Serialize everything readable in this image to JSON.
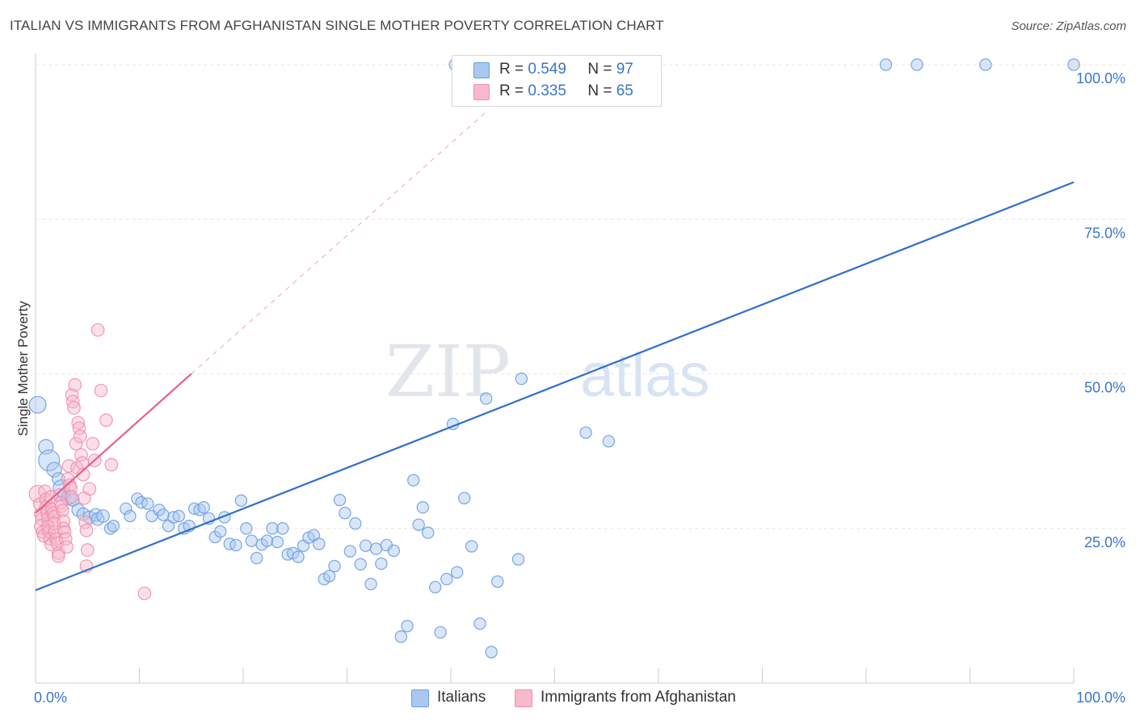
{
  "title": "ITALIAN VS IMMIGRANTS FROM AFGHANISTAN SINGLE MOTHER POVERTY CORRELATION CHART",
  "source": "Source: ZipAtlas.com",
  "watermark": {
    "zip": "ZIP",
    "atlas": "atlas"
  },
  "legend": {
    "r_label": "R =",
    "n_label": "N =",
    "series": [
      {
        "r": "0.549",
        "n": "97"
      },
      {
        "r": "0.335",
        "n": "65"
      }
    ]
  },
  "chart_data": {
    "type": "scatter",
    "title": "ITALIAN VS IMMIGRANTS FROM AFGHANISTAN SINGLE MOTHER POVERTY CORRELATION CHART",
    "xlabel": "",
    "ylabel": "Single Mother Poverty",
    "xlim": [
      0,
      100
    ],
    "ylim": [
      0,
      100
    ],
    "x_tick_labels": [
      "0.0%",
      "100.0%"
    ],
    "y_tick_labels": [
      "25.0%",
      "50.0%",
      "75.0%",
      "100.0%"
    ],
    "y_ticks": [
      25,
      50,
      75,
      100
    ],
    "grid": true,
    "legend_position": "top-center",
    "colors": {
      "italians_fill": "#a9c8f0",
      "italians_stroke": "#6d9de0",
      "italians_line": "#2f6fcc",
      "afghan_fill": "#f7b9cb",
      "afghan_stroke": "#ee8fac",
      "afghan_line": "#e8628a",
      "tick_label": "#3a76c8"
    },
    "series": [
      {
        "name": "Italians",
        "r": 0.549,
        "n": 97,
        "trend": {
          "x": [
            0,
            100
          ],
          "y": [
            15.0,
            81.0
          ]
        },
        "points": [
          [
            0.2,
            45.0,
            16
          ],
          [
            1.0,
            38.2,
            14
          ],
          [
            1.3,
            36.0,
            20
          ],
          [
            1.8,
            34.5,
            14
          ],
          [
            2.2,
            33.0,
            12
          ],
          [
            2.5,
            31.5,
            16
          ],
          [
            2.8,
            30.5,
            12
          ],
          [
            3.2,
            30.0,
            14
          ],
          [
            3.6,
            29.6,
            12
          ],
          [
            4.1,
            28.0,
            12
          ],
          [
            4.6,
            27.3,
            12
          ],
          [
            5.2,
            26.8,
            12
          ],
          [
            5.8,
            27.2,
            12
          ],
          [
            6.0,
            26.5,
            12
          ],
          [
            6.5,
            27.0,
            12
          ],
          [
            7.2,
            25.0,
            11
          ],
          [
            7.5,
            25.4,
            11
          ],
          [
            8.7,
            28.2,
            11
          ],
          [
            9.1,
            27.0,
            11
          ],
          [
            9.8,
            29.8,
            11
          ],
          [
            10.2,
            29.2,
            11
          ],
          [
            10.8,
            29.0,
            11
          ],
          [
            11.2,
            27.0,
            11
          ],
          [
            11.9,
            28.0,
            11
          ],
          [
            12.3,
            27.2,
            11
          ],
          [
            12.8,
            25.4,
            11
          ],
          [
            13.3,
            26.8,
            11
          ],
          [
            13.8,
            27.0,
            11
          ],
          [
            14.3,
            25.0,
            11
          ],
          [
            14.8,
            25.4,
            11
          ],
          [
            15.3,
            28.2,
            11
          ],
          [
            15.8,
            28.0,
            11
          ],
          [
            16.2,
            28.4,
            11
          ],
          [
            16.7,
            26.6,
            11
          ],
          [
            17.3,
            23.6,
            11
          ],
          [
            17.8,
            24.5,
            11
          ],
          [
            18.2,
            26.8,
            11
          ],
          [
            18.7,
            22.5,
            11
          ],
          [
            19.3,
            22.3,
            11
          ],
          [
            19.8,
            29.5,
            11
          ],
          [
            20.3,
            25.0,
            11
          ],
          [
            20.8,
            23.0,
            11
          ],
          [
            21.3,
            20.2,
            11
          ],
          [
            21.8,
            22.4,
            11
          ],
          [
            22.3,
            23.0,
            11
          ],
          [
            22.8,
            25.0,
            11
          ],
          [
            23.3,
            22.8,
            11
          ],
          [
            23.8,
            25.0,
            11
          ],
          [
            24.3,
            20.8,
            11
          ],
          [
            24.8,
            21.0,
            11
          ],
          [
            25.3,
            20.4,
            11
          ],
          [
            25.8,
            22.2,
            11
          ],
          [
            26.3,
            23.5,
            11
          ],
          [
            26.8,
            23.9,
            11
          ],
          [
            27.3,
            22.5,
            11
          ],
          [
            27.8,
            16.8,
            11
          ],
          [
            28.3,
            17.3,
            11
          ],
          [
            28.8,
            18.9,
            11
          ],
          [
            29.3,
            29.6,
            11
          ],
          [
            29.8,
            27.5,
            11
          ],
          [
            30.3,
            21.3,
            11
          ],
          [
            30.8,
            25.8,
            11
          ],
          [
            31.3,
            19.2,
            11
          ],
          [
            31.8,
            22.2,
            11
          ],
          [
            32.3,
            16.0,
            11
          ],
          [
            32.8,
            21.7,
            11
          ],
          [
            33.3,
            19.3,
            11
          ],
          [
            33.8,
            22.3,
            11
          ],
          [
            34.5,
            21.4,
            11
          ],
          [
            35.2,
            7.5,
            11
          ],
          [
            35.8,
            9.2,
            11
          ],
          [
            36.4,
            32.8,
            11
          ],
          [
            36.9,
            25.6,
            11
          ],
          [
            37.3,
            28.4,
            11
          ],
          [
            37.8,
            24.3,
            11
          ],
          [
            38.5,
            15.5,
            11
          ],
          [
            39.0,
            8.2,
            11
          ],
          [
            39.6,
            16.8,
            11
          ],
          [
            40.2,
            41.9,
            11
          ],
          [
            40.6,
            17.9,
            11
          ],
          [
            41.3,
            29.9,
            11
          ],
          [
            42.0,
            22.1,
            11
          ],
          [
            42.8,
            9.6,
            11
          ],
          [
            43.4,
            46.0,
            11
          ],
          [
            43.9,
            5.0,
            11
          ],
          [
            44.5,
            16.4,
            11
          ],
          [
            46.5,
            20.0,
            11
          ],
          [
            46.8,
            49.2,
            11
          ],
          [
            53.0,
            40.5,
            11
          ],
          [
            55.2,
            39.1,
            11
          ],
          [
            40.4,
            100,
            11
          ],
          [
            42.2,
            100,
            11
          ],
          [
            49.2,
            100,
            11
          ],
          [
            81.9,
            100,
            11
          ],
          [
            84.9,
            100,
            11
          ],
          [
            91.5,
            100,
            11
          ],
          [
            100,
            100,
            11
          ]
        ]
      },
      {
        "name": "Immigrants from Afghanistan",
        "r": 0.335,
        "n": 65,
        "trend": {
          "x": [
            0,
            15.0
          ],
          "y": [
            27.5,
            50.0
          ]
        },
        "trend_dashed": {
          "x": [
            15.0,
            43.5
          ],
          "y": [
            50.0,
            92.5
          ]
        },
        "points": [
          [
            0.2,
            30.6,
            16
          ],
          [
            0.4,
            28.9,
            12
          ],
          [
            0.5,
            27.3,
            12
          ],
          [
            0.6,
            26.5,
            12
          ],
          [
            0.6,
            25.3,
            14
          ],
          [
            0.7,
            24.4,
            12
          ],
          [
            0.8,
            23.8,
            12
          ],
          [
            0.9,
            31.0,
            12
          ],
          [
            1.0,
            29.7,
            12
          ],
          [
            1.0,
            28.4,
            12
          ],
          [
            1.1,
            27.6,
            12
          ],
          [
            1.2,
            26.6,
            12
          ],
          [
            1.2,
            25.3,
            12
          ],
          [
            1.3,
            24.5,
            12
          ],
          [
            1.4,
            23.3,
            12
          ],
          [
            1.5,
            22.4,
            12
          ],
          [
            1.5,
            30.1,
            12
          ],
          [
            1.6,
            28.0,
            12
          ],
          [
            1.7,
            27.5,
            12
          ],
          [
            1.8,
            26.9,
            12
          ],
          [
            1.8,
            25.8,
            12
          ],
          [
            1.9,
            24.5,
            12
          ],
          [
            2.0,
            23.3,
            12
          ],
          [
            2.1,
            22.6,
            12
          ],
          [
            2.2,
            21.0,
            12
          ],
          [
            2.2,
            20.5,
            12
          ],
          [
            2.3,
            30.4,
            12
          ],
          [
            2.4,
            29.1,
            12
          ],
          [
            2.5,
            28.6,
            12
          ],
          [
            2.6,
            27.9,
            12
          ],
          [
            2.7,
            26.2,
            12
          ],
          [
            2.7,
            25.0,
            12
          ],
          [
            2.8,
            24.4,
            12
          ],
          [
            2.9,
            23.3,
            12
          ],
          [
            3.0,
            22.0,
            12
          ],
          [
            3.1,
            33.0,
            12
          ],
          [
            3.2,
            35.1,
            12
          ],
          [
            3.3,
            32.0,
            12
          ],
          [
            3.4,
            31.5,
            12
          ],
          [
            3.5,
            30.1,
            12
          ],
          [
            3.5,
            46.6,
            12
          ],
          [
            3.6,
            45.5,
            12
          ],
          [
            3.7,
            44.5,
            12
          ],
          [
            3.8,
            48.2,
            12
          ],
          [
            3.9,
            38.7,
            12
          ],
          [
            4.0,
            34.8,
            12
          ],
          [
            4.1,
            42.1,
            12
          ],
          [
            4.2,
            41.2,
            12
          ],
          [
            4.3,
            39.9,
            12
          ],
          [
            4.4,
            36.9,
            12
          ],
          [
            4.5,
            35.6,
            12
          ],
          [
            4.6,
            33.7,
            12
          ],
          [
            4.7,
            29.9,
            12
          ],
          [
            4.8,
            26.0,
            12
          ],
          [
            4.9,
            24.7,
            12
          ],
          [
            4.9,
            18.9,
            12
          ],
          [
            5.0,
            21.5,
            12
          ],
          [
            5.2,
            31.4,
            12
          ],
          [
            5.5,
            38.7,
            12
          ],
          [
            5.7,
            36.0,
            12
          ],
          [
            6.0,
            57.1,
            12
          ],
          [
            6.3,
            47.3,
            12
          ],
          [
            6.8,
            42.5,
            12
          ],
          [
            7.3,
            35.3,
            12
          ],
          [
            10.5,
            14.5,
            12
          ]
        ]
      }
    ]
  },
  "bottom_legend": [
    "Italians",
    "Immigrants from Afghanistan"
  ]
}
